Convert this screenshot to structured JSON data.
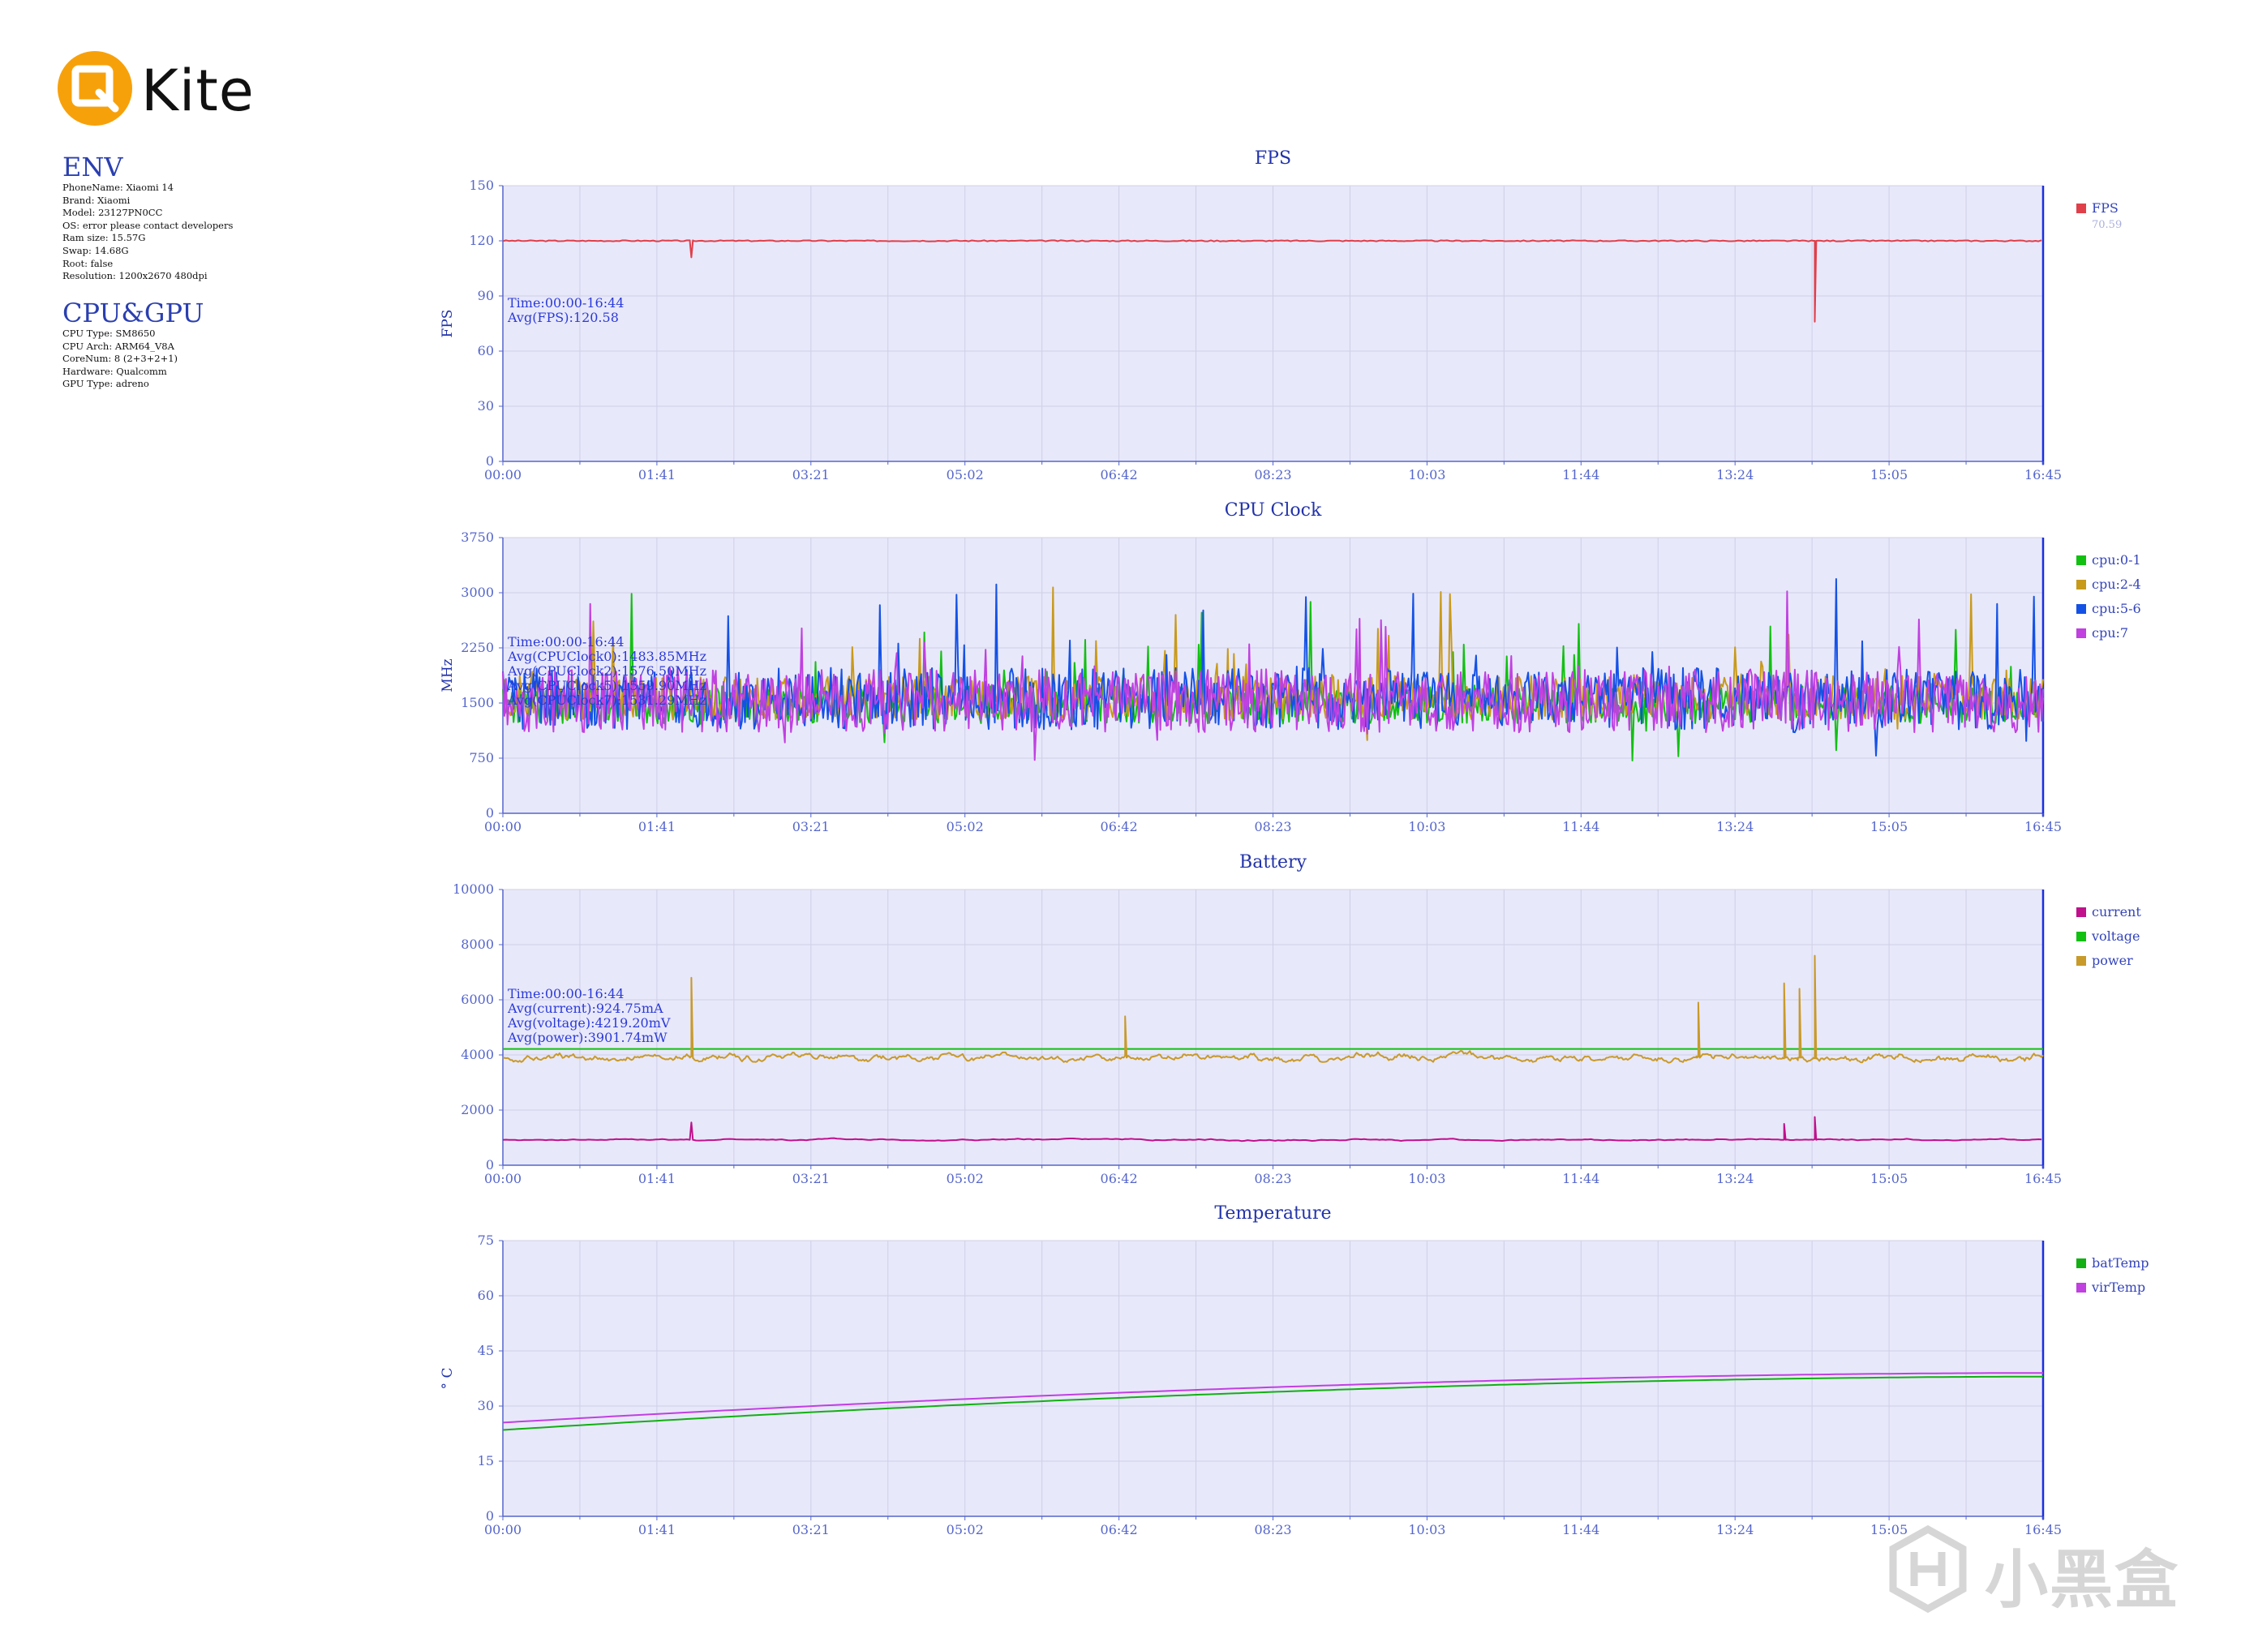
{
  "brand": {
    "name": "Kite",
    "color": "#f7a10a"
  },
  "env": {
    "title": "ENV",
    "rows": [
      "PhoneName: Xiaomi 14",
      "Brand: Xiaomi",
      "Model: 23127PN0CC",
      "OS: error please contact developers",
      "Ram size: 15.57G",
      "Swap: 14.68G",
      "Root: false",
      "Resolution: 1200x2670 480dpi"
    ]
  },
  "cpu_gpu": {
    "title": "CPU&GPU",
    "rows": [
      "CPU Type: SM8650",
      "CPU Arch: ARM64_V8A",
      "CoreNum: 8 (2+3+2+1)",
      "Hardware: Qualcomm",
      "GPU Type: adreno"
    ]
  },
  "watermark": {
    "text": "小黑盒",
    "icon": "heybox-logo-icon"
  },
  "chart_data": [
    {
      "type": "line",
      "title": "FPS",
      "ylabel": "FPS",
      "xlabel": "",
      "x_ticks": [
        "00:00",
        "01:41",
        "03:21",
        "05:02",
        "06:42",
        "08:23",
        "10:03",
        "11:44",
        "13:24",
        "15:05",
        "16:45"
      ],
      "xlim": [
        0,
        1005
      ],
      "ylim": [
        0,
        150
      ],
      "y_ticks": [
        0,
        30,
        60,
        90,
        120,
        150
      ],
      "grid": true,
      "legend": "right",
      "annotation": [
        "Time:00:00-16:44",
        "Avg(FPS):120.58"
      ],
      "legend_extra": "70.59",
      "series": [
        {
          "name": "FPS",
          "color": "#e0404a",
          "base": 120,
          "noise": 0.6,
          "seed": 3,
          "spikes": [
            [
              123,
              111
            ],
            [
              856,
              76
            ]
          ]
        }
      ]
    },
    {
      "type": "line",
      "title": "CPU Clock",
      "ylabel": "MHz",
      "xlabel": "",
      "x_ticks": [
        "00:00",
        "01:41",
        "03:21",
        "05:02",
        "06:42",
        "08:23",
        "10:03",
        "11:44",
        "13:24",
        "15:05",
        "16:45"
      ],
      "xlim": [
        0,
        1005
      ],
      "ylim": [
        0,
        3750
      ],
      "y_ticks": [
        0,
        750,
        1500,
        2250,
        3000,
        3750
      ],
      "grid": true,
      "legend": "right",
      "annotation": [
        "Time:00:00-16:44",
        "Avg(CPUClock0):1483.85MHz",
        "Avg(CPUClock2):1576.50MHz",
        "Avg(CPUClock5):1559.90MHz",
        "Avg(CPUClock7):1531.29MHz"
      ],
      "series": [
        {
          "name": "cpu:0-1",
          "color": "#12c012",
          "base": 1480,
          "noise": 260,
          "seed": 11
        },
        {
          "name": "cpu:2-4",
          "color": "#c89a1a",
          "base": 1570,
          "noise": 300,
          "seed": 17
        },
        {
          "name": "cpu:5-6",
          "color": "#1452e6",
          "base": 1560,
          "noise": 420,
          "seed": 23
        },
        {
          "name": "cpu:7",
          "color": "#c040e0",
          "base": 1530,
          "noise": 430,
          "seed": 29
        }
      ]
    },
    {
      "type": "line",
      "title": "Battery",
      "ylabel": "",
      "xlabel": "",
      "x_ticks": [
        "00:00",
        "01:41",
        "03:21",
        "05:02",
        "06:42",
        "08:23",
        "10:03",
        "11:44",
        "13:24",
        "15:05",
        "16:45"
      ],
      "xlim": [
        0,
        1005
      ],
      "ylim": [
        0,
        10000
      ],
      "y_ticks": [
        0,
        2000,
        4000,
        6000,
        8000,
        10000
      ],
      "grid": true,
      "legend": "right",
      "annotation": [
        "Time:00:00-16:44",
        "Avg(current):924.75mA",
        "Avg(voltage):4219.20mV",
        "Avg(power):3901.74mW"
      ],
      "series": [
        {
          "name": "current",
          "color": "#c0108c",
          "base": 920,
          "noise": 70,
          "seed": 41,
          "spikes": [
            [
              123,
              1550
            ],
            [
              836,
              1500
            ],
            [
              856,
              1750
            ]
          ]
        },
        {
          "name": "voltage",
          "color": "#12c012",
          "base": 4219,
          "noise": 0,
          "seed": 0,
          "flat": true
        },
        {
          "name": "power",
          "color": "#c89a2a",
          "base": 3900,
          "noise": 320,
          "seed": 53,
          "spikes": [
            [
              123,
              6800
            ],
            [
              406,
              5400
            ],
            [
              780,
              5900
            ],
            [
              836,
              6600
            ],
            [
              846,
              6400
            ],
            [
              856,
              7600
            ]
          ]
        }
      ]
    },
    {
      "type": "line",
      "title": "Temperature",
      "ylabel": "° C",
      "xlabel": "",
      "x_ticks": [
        "00:00",
        "01:41",
        "03:21",
        "05:02",
        "06:42",
        "08:23",
        "10:03",
        "11:44",
        "13:24",
        "15:05",
        "16:45"
      ],
      "xlim": [
        0,
        1005
      ],
      "ylim": [
        0,
        75
      ],
      "y_ticks": [
        0,
        15,
        30,
        45,
        60,
        75
      ],
      "grid": true,
      "legend": "right",
      "series": [
        {
          "name": "batTemp",
          "color": "#12b012",
          "start": 23.5,
          "end": 38.0,
          "curve": true
        },
        {
          "name": "virTemp",
          "color": "#c040e0",
          "start": 25.5,
          "end": 39.0,
          "curve": true
        }
      ]
    }
  ]
}
